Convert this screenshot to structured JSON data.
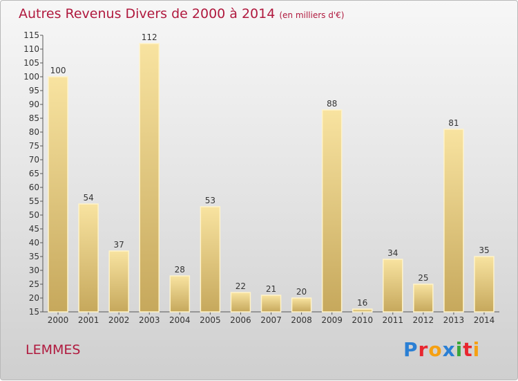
{
  "title": "Autres Revenus Divers de 2000 à 2014",
  "subtitle": "(en milliers d'€)",
  "place": "LEMMES",
  "brand": [
    "P",
    "r",
    "o",
    "x",
    "i",
    "t",
    "i"
  ],
  "brand_colors": [
    "#2a7fd4",
    "#e8262f",
    "#f5a012",
    "#2a7fd4",
    "#3aa63a",
    "#e8262f",
    "#f5a012"
  ],
  "colors": {
    "title": "#b0193e",
    "bar_light": "#f8e3a0",
    "bar_dark": "#c6a85c",
    "bar_edge": "#fff3c8"
  },
  "chart_data": {
    "type": "bar",
    "categories": [
      "2000",
      "2001",
      "2002",
      "2003",
      "2004",
      "2005",
      "2006",
      "2007",
      "2008",
      "2009",
      "2010",
      "2011",
      "2012",
      "2013",
      "2014"
    ],
    "values": [
      100,
      54,
      37,
      112,
      28,
      53,
      22,
      21,
      20,
      88,
      16,
      34,
      25,
      81,
      35
    ],
    "ylim": [
      15,
      115
    ],
    "yticks": [
      15,
      20,
      25,
      30,
      35,
      40,
      45,
      50,
      55,
      60,
      65,
      70,
      75,
      80,
      85,
      90,
      95,
      100,
      105,
      110,
      115
    ],
    "grid": false,
    "data_labels": true
  }
}
